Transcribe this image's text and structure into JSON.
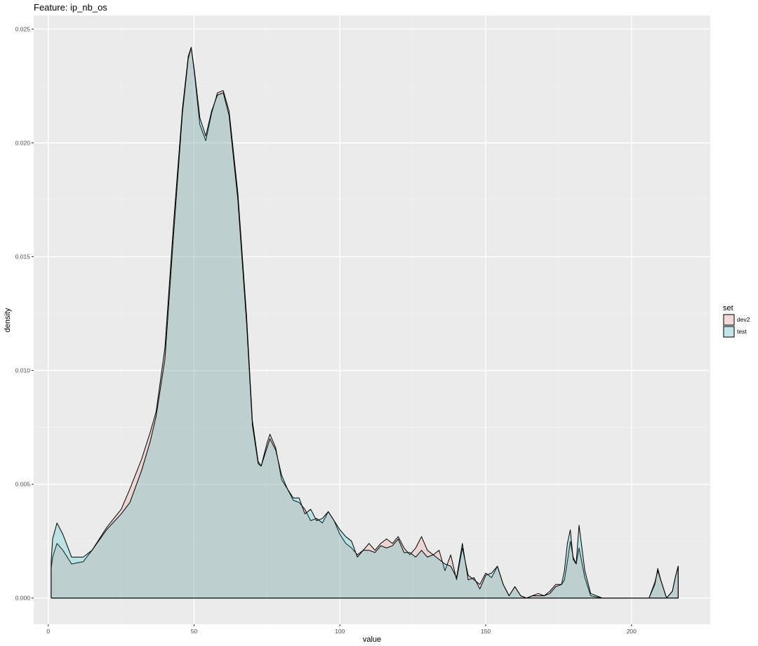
{
  "chart_data": {
    "type": "area",
    "title": "Feature: ip_nb_os",
    "xlabel": "value",
    "ylabel": "density",
    "xlim": [
      -5,
      227
    ],
    "ylim": [
      -0.00115,
      0.0256
    ],
    "x_ticks": [
      0,
      50,
      100,
      150,
      200
    ],
    "x_tick_labels": [
      "0",
      "50",
      "100",
      "150",
      "200"
    ],
    "y_ticks": [
      0,
      0.005,
      0.01,
      0.015,
      0.02,
      0.025
    ],
    "y_tick_labels": [
      "0.000",
      "0.005",
      "0.010",
      "0.015",
      "0.020",
      "0.025"
    ],
    "grid": true,
    "legend": {
      "title": "set",
      "position": "right"
    },
    "series": [
      {
        "name": "dev2",
        "color": "#F8766D",
        "x": [
          1,
          1.5,
          3,
          5,
          8,
          12,
          15,
          20,
          25,
          28,
          32,
          35,
          37,
          40,
          43,
          46,
          48,
          49,
          50,
          52,
          54,
          56,
          58,
          60,
          62,
          65,
          68,
          70,
          72,
          73,
          75,
          76,
          78,
          80,
          82,
          84,
          86,
          88,
          90,
          92,
          94,
          96,
          98,
          100,
          102,
          104,
          106,
          108,
          110,
          112,
          114,
          116,
          118,
          120,
          122,
          124,
          126,
          128,
          130,
          132,
          134,
          136,
          138,
          140,
          142,
          144,
          146,
          148,
          150,
          152,
          154,
          156,
          158,
          160,
          162,
          164,
          166,
          168,
          170,
          172,
          174,
          176,
          177,
          178,
          179,
          180,
          181,
          182,
          184,
          186,
          190,
          200,
          206,
          208,
          209,
          210,
          212,
          214,
          215,
          216
        ],
        "values": [
          0.0013,
          0.0018,
          0.0024,
          0.0021,
          0.0015,
          0.0016,
          0.0021,
          0.0031,
          0.0039,
          0.0048,
          0.0061,
          0.0073,
          0.0082,
          0.011,
          0.0165,
          0.0215,
          0.0238,
          0.0242,
          0.0232,
          0.0208,
          0.0201,
          0.0213,
          0.0222,
          0.0223,
          0.0214,
          0.0178,
          0.0124,
          0.0078,
          0.006,
          0.0058,
          0.0068,
          0.0072,
          0.0066,
          0.0052,
          0.0048,
          0.0043,
          0.0042,
          0.0039,
          0.0034,
          0.0035,
          0.0033,
          0.0038,
          0.0034,
          0.0028,
          0.0024,
          0.0022,
          0.0019,
          0.0021,
          0.0024,
          0.0021,
          0.0024,
          0.0026,
          0.0024,
          0.0027,
          0.0022,
          0.0019,
          0.0022,
          0.0027,
          0.0021,
          0.0019,
          0.0021,
          0.0012,
          0.0019,
          0.0008,
          0.0022,
          0.001,
          0.0008,
          0.0006,
          0.0011,
          0.0009,
          0.0014,
          0.0006,
          0.0001,
          0.0005,
          0.0001,
          0,
          0.0001,
          0.0002,
          0.0001,
          0.0003,
          0.0006,
          0.0006,
          0.0008,
          0.0016,
          0.0025,
          0.0018,
          0.0015,
          0.0022,
          0.0009,
          0.0001,
          0,
          0,
          0,
          0.0006,
          0.0013,
          0.0008,
          0,
          0.0003,
          0.0009,
          0.0014
        ]
      },
      {
        "name": "test",
        "color": "#00BFC4",
        "x": [
          1,
          1.5,
          3,
          5,
          8,
          12,
          15,
          20,
          25,
          28,
          32,
          35,
          37,
          40,
          43,
          46,
          48,
          49,
          50,
          52,
          54,
          56,
          58,
          60,
          62,
          65,
          68,
          70,
          72,
          73,
          75,
          76,
          78,
          80,
          82,
          84,
          86,
          88,
          90,
          92,
          94,
          96,
          98,
          100,
          102,
          104,
          106,
          108,
          110,
          112,
          114,
          116,
          118,
          120,
          122,
          124,
          126,
          128,
          130,
          132,
          134,
          136,
          138,
          140,
          142,
          144,
          146,
          148,
          150,
          152,
          154,
          156,
          158,
          160,
          162,
          164,
          166,
          168,
          170,
          172,
          174,
          176,
          177,
          178,
          179,
          180,
          181,
          182,
          184,
          186,
          190,
          200,
          206,
          208,
          209,
          210,
          212,
          214,
          215,
          216
        ],
        "values": [
          0.0016,
          0.0026,
          0.0033,
          0.0028,
          0.0018,
          0.0018,
          0.0021,
          0.003,
          0.0037,
          0.0042,
          0.0056,
          0.0069,
          0.008,
          0.0105,
          0.016,
          0.0213,
          0.0237,
          0.0242,
          0.0233,
          0.0211,
          0.0203,
          0.0214,
          0.0221,
          0.0222,
          0.0212,
          0.0175,
          0.0121,
          0.0076,
          0.0059,
          0.0058,
          0.0066,
          0.007,
          0.0065,
          0.0054,
          0.0048,
          0.0044,
          0.0044,
          0.0037,
          0.0039,
          0.0034,
          0.0035,
          0.0038,
          0.0034,
          0.003,
          0.0027,
          0.0025,
          0.0018,
          0.0021,
          0.0021,
          0.002,
          0.0023,
          0.0022,
          0.0023,
          0.0026,
          0.002,
          0.002,
          0.0018,
          0.0021,
          0.0018,
          0.0019,
          0.0017,
          0.0015,
          0.0014,
          0.0009,
          0.0024,
          0.0008,
          0.0009,
          0.0004,
          0.001,
          0.0011,
          0.0014,
          0.0006,
          0.0001,
          0.0005,
          0.0001,
          0,
          0.0001,
          0.0001,
          0.0001,
          0.0002,
          0.0005,
          0.0006,
          0.0012,
          0.0024,
          0.003,
          0.0017,
          0.0015,
          0.0032,
          0.0012,
          0.0002,
          0,
          0,
          0,
          0.0007,
          0.0012,
          0.0008,
          0,
          0.0003,
          0.0009,
          0.0014
        ]
      }
    ]
  }
}
